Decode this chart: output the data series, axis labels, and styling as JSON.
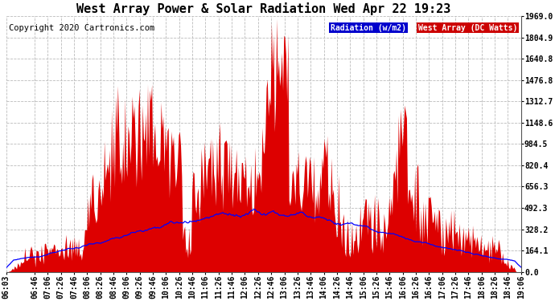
{
  "title": "West Array Power & Solar Radiation Wed Apr 22 19:23",
  "copyright": "Copyright 2020 Cartronics.com",
  "legend_radiation": "Radiation (w/m2)",
  "legend_west": "West Array (DC Watts)",
  "legend_radiation_bg": "#0000cc",
  "legend_west_bg": "#cc0000",
  "background_color": "#ffffff",
  "plot_bg_color": "#ffffff",
  "grid_color": "#bbbbbb",
  "fill_color": "#dd0000",
  "line_color": "#0000ff",
  "yticks": [
    0.0,
    164.1,
    328.2,
    492.3,
    656.3,
    820.4,
    984.5,
    1148.6,
    1312.7,
    1476.8,
    1640.8,
    1804.9,
    1969.0
  ],
  "ymax": 1969.0,
  "title_fontsize": 11,
  "tick_fontsize": 7,
  "copyright_fontsize": 7.5
}
